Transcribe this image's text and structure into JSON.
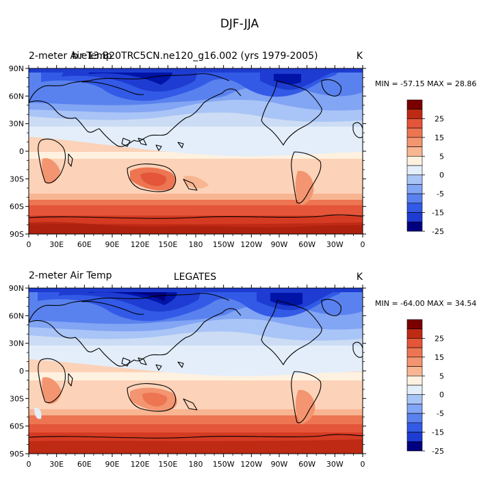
{
  "figure_title": "DJF-JJA",
  "colorbar_levels": [
    "25",
    "15",
    "5",
    "0",
    "-5",
    "-15",
    "-25"
  ],
  "colors": {
    "n9": "#00007f",
    "n8": "#0014a8",
    "n7": "#1e3cd2",
    "n6": "#325ae6",
    "n5": "#5a82ee",
    "n4": "#82a5f4",
    "n3": "#a9c4f6",
    "n2": "#cbdcf4",
    "n1": "#e3eefa",
    "p0": "#fff1e0",
    "p1": "#fcd2b8",
    "p2": "#f8b592",
    "p3": "#f39570",
    "p4": "#ed7552",
    "p5": "#e4553a",
    "p6": "#d53a22",
    "p7": "#be2a14",
    "p8": "#a01a0a",
    "p9": "#7a0000"
  },
  "panels": [
    {
      "left_title": "2-meter Air Temp",
      "center_title": "b.e13.B20TRC5CN.ne120_g16.002 (yrs 1979-2005)",
      "units": "K",
      "stats": "MIN = -57.15 MAX =  28.86",
      "lat_labels": [
        "90N",
        "60N",
        "30N",
        "0",
        "30S",
        "60S",
        "90S"
      ],
      "lon_labels": [
        "0",
        "30E",
        "60E",
        "90E",
        "120E",
        "150E",
        "180",
        "150W",
        "120W",
        "90W",
        "60W",
        "30W",
        "0"
      ]
    },
    {
      "left_title": "2-meter Air Temp",
      "center_title": "LEGATES",
      "units": "K",
      "stats": "MIN = -64.00 MAX =  34.54",
      "lat_labels": [
        "90N",
        "60N",
        "30N",
        "0",
        "30S",
        "60S",
        "90S"
      ],
      "lon_labels": [
        "0",
        "30E",
        "60E",
        "90E",
        "120E",
        "150E",
        "180",
        "150W",
        "120W",
        "90W",
        "60W",
        "30W",
        "0"
      ]
    }
  ]
}
